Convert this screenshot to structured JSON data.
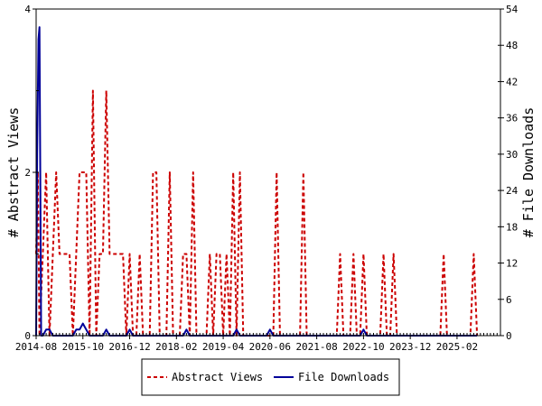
{
  "chart_data": {
    "type": "line",
    "y_left_label": "# Abstract Views",
    "y_right_label": "# File Downloads",
    "y_left_ticks": [
      "0",
      "2",
      "4"
    ],
    "y_right_ticks": [
      "0",
      "6",
      "12",
      "18",
      "24",
      "30",
      "36",
      "42",
      "48",
      "54"
    ],
    "y_left_range": [
      0,
      4
    ],
    "y_right_range": [
      0,
      54
    ],
    "x_range": [
      0,
      139
    ],
    "x_ticks": [
      {
        "label": "2014-08",
        "x": 0
      },
      {
        "label": "2015-10",
        "x": 14
      },
      {
        "label": "2016-12",
        "x": 28
      },
      {
        "label": "2018-02",
        "x": 42
      },
      {
        "label": "2019-04",
        "x": 56
      },
      {
        "label": "2020-06",
        "x": 70
      },
      {
        "label": "2021-08",
        "x": 84
      },
      {
        "label": "2022-10",
        "x": 98
      },
      {
        "label": "2023-12",
        "x": 112
      },
      {
        "label": "2025-02",
        "x": 126
      }
    ],
    "series": [
      {
        "name": "Abstract Views",
        "color": "#cc0000",
        "axis": "left",
        "dash": true,
        "points": [
          [
            0,
            1
          ],
          [
            0.5,
            2
          ],
          [
            1,
            0
          ],
          [
            2,
            1
          ],
          [
            3,
            2
          ],
          [
            4,
            0
          ],
          [
            5,
            1
          ],
          [
            6,
            2
          ],
          [
            7,
            1
          ],
          [
            8,
            1
          ],
          [
            9,
            1
          ],
          [
            10,
            1
          ],
          [
            11,
            0
          ],
          [
            12,
            1
          ],
          [
            13,
            2
          ],
          [
            14,
            2
          ],
          [
            15,
            2
          ],
          [
            16,
            0
          ],
          [
            17,
            3
          ],
          [
            18,
            0
          ],
          [
            19,
            1
          ],
          [
            20,
            1
          ],
          [
            21,
            3
          ],
          [
            22,
            1
          ],
          [
            23,
            1
          ],
          [
            24,
            1
          ],
          [
            25,
            1
          ],
          [
            26,
            1
          ],
          [
            27,
            0
          ],
          [
            28,
            1
          ],
          [
            29,
            0
          ],
          [
            30,
            0
          ],
          [
            31,
            1
          ],
          [
            32,
            0
          ],
          [
            33,
            0
          ],
          [
            34,
            0
          ],
          [
            35,
            2
          ],
          [
            36,
            2
          ],
          [
            37,
            0
          ],
          [
            38,
            0
          ],
          [
            39,
            0
          ],
          [
            40,
            2
          ],
          [
            41,
            0
          ],
          [
            42,
            0
          ],
          [
            43,
            0
          ],
          [
            44,
            1
          ],
          [
            45,
            1
          ],
          [
            46,
            0
          ],
          [
            47,
            2
          ],
          [
            48,
            0
          ],
          [
            49,
            0
          ],
          [
            50,
            0
          ],
          [
            51,
            0
          ],
          [
            52,
            1
          ],
          [
            53,
            0
          ],
          [
            54,
            1
          ],
          [
            55,
            1
          ],
          [
            56,
            0
          ],
          [
            57,
            1
          ],
          [
            58,
            0
          ],
          [
            59,
            2
          ],
          [
            60,
            0
          ],
          [
            61,
            2
          ],
          [
            62,
            0
          ],
          [
            63,
            0
          ],
          [
            64,
            0
          ],
          [
            65,
            0
          ],
          [
            66,
            0
          ],
          [
            67,
            0
          ],
          [
            68,
            0
          ],
          [
            69,
            0
          ],
          [
            70,
            0
          ],
          [
            71,
            0
          ],
          [
            72,
            2
          ],
          [
            73,
            0
          ],
          [
            74,
            0
          ],
          [
            75,
            0
          ],
          [
            76,
            0
          ],
          [
            77,
            0
          ],
          [
            78,
            0
          ],
          [
            79,
            0
          ],
          [
            80,
            2
          ],
          [
            81,
            0
          ],
          [
            82,
            0
          ],
          [
            83,
            0
          ],
          [
            84,
            0
          ],
          [
            85,
            0
          ],
          [
            86,
            0
          ],
          [
            87,
            0
          ],
          [
            88,
            0
          ],
          [
            89,
            0
          ],
          [
            90,
            0
          ],
          [
            91,
            1
          ],
          [
            92,
            0
          ],
          [
            93,
            0
          ],
          [
            94,
            0
          ],
          [
            95,
            1
          ],
          [
            96,
            0
          ],
          [
            97,
            0
          ],
          [
            98,
            1
          ],
          [
            99,
            0
          ],
          [
            100,
            0
          ],
          [
            101,
            0
          ],
          [
            102,
            0
          ],
          [
            103,
            0
          ],
          [
            104,
            1
          ],
          [
            105,
            0
          ],
          [
            106,
            0
          ],
          [
            107,
            1
          ],
          [
            108,
            0
          ],
          [
            109,
            0
          ],
          [
            110,
            0
          ],
          [
            111,
            0
          ],
          [
            112,
            0
          ],
          [
            113,
            0
          ],
          [
            114,
            0
          ],
          [
            115,
            0
          ],
          [
            116,
            0
          ],
          [
            117,
            0
          ],
          [
            118,
            0
          ],
          [
            119,
            0
          ],
          [
            120,
            0
          ],
          [
            121,
            0
          ],
          [
            122,
            1
          ],
          [
            123,
            0
          ],
          [
            124,
            0
          ],
          [
            125,
            0
          ],
          [
            126,
            0
          ],
          [
            127,
            0
          ],
          [
            128,
            0
          ],
          [
            129,
            0
          ],
          [
            130,
            0
          ],
          [
            131,
            1
          ],
          [
            132,
            0
          ]
        ]
      },
      {
        "name": "File Downloads",
        "color": "#000099",
        "axis": "right",
        "dash": false,
        "points": [
          [
            0,
            0
          ],
          [
            0.3,
            30
          ],
          [
            0.7,
            49
          ],
          [
            1,
            51
          ],
          [
            1.5,
            0
          ],
          [
            2,
            0
          ],
          [
            3,
            1
          ],
          [
            4,
            1
          ],
          [
            5,
            0
          ],
          [
            6,
            0
          ],
          [
            7,
            0
          ],
          [
            8,
            0
          ],
          [
            9,
            0
          ],
          [
            10,
            0
          ],
          [
            11,
            0
          ],
          [
            12,
            1
          ],
          [
            13,
            1
          ],
          [
            14,
            2
          ],
          [
            15,
            1
          ],
          [
            16,
            0
          ],
          [
            17,
            0
          ],
          [
            18,
            0
          ],
          [
            19,
            0
          ],
          [
            20,
            0
          ],
          [
            21,
            1
          ],
          [
            22,
            0
          ],
          [
            23,
            0
          ],
          [
            24,
            0
          ],
          [
            25,
            0
          ],
          [
            26,
            0
          ],
          [
            27,
            0
          ],
          [
            28,
            1
          ],
          [
            29,
            0
          ],
          [
            30,
            0
          ],
          [
            31,
            0
          ],
          [
            32,
            0
          ],
          [
            33,
            0
          ],
          [
            34,
            0
          ],
          [
            35,
            0
          ],
          [
            36,
            0
          ],
          [
            37,
            0
          ],
          [
            38,
            0
          ],
          [
            39,
            0
          ],
          [
            40,
            0
          ],
          [
            41,
            0
          ],
          [
            42,
            0
          ],
          [
            43,
            0
          ],
          [
            44,
            0
          ],
          [
            45,
            1
          ],
          [
            46,
            0
          ],
          [
            47,
            0
          ],
          [
            48,
            0
          ],
          [
            49,
            0
          ],
          [
            50,
            0
          ],
          [
            51,
            0
          ],
          [
            52,
            0
          ],
          [
            53,
            0
          ],
          [
            54,
            0
          ],
          [
            55,
            0
          ],
          [
            56,
            0
          ],
          [
            57,
            0
          ],
          [
            58,
            0
          ],
          [
            59,
            0
          ],
          [
            60,
            1
          ],
          [
            61,
            0
          ],
          [
            62,
            0
          ],
          [
            63,
            0
          ],
          [
            64,
            0
          ],
          [
            65,
            0
          ],
          [
            66,
            0
          ],
          [
            67,
            0
          ],
          [
            68,
            0
          ],
          [
            69,
            0
          ],
          [
            70,
            1
          ],
          [
            71,
            0
          ],
          [
            72,
            0
          ],
          [
            73,
            0
          ],
          [
            74,
            0
          ],
          [
            75,
            0
          ],
          [
            76,
            0
          ],
          [
            77,
            0
          ],
          [
            78,
            0
          ],
          [
            79,
            0
          ],
          [
            80,
            0
          ],
          [
            81,
            0
          ],
          [
            82,
            0
          ],
          [
            83,
            0
          ],
          [
            84,
            0
          ],
          [
            85,
            0
          ],
          [
            86,
            0
          ],
          [
            87,
            0
          ],
          [
            88,
            0
          ],
          [
            89,
            0
          ],
          [
            90,
            0
          ],
          [
            91,
            0
          ],
          [
            92,
            0
          ],
          [
            93,
            0
          ],
          [
            94,
            0
          ],
          [
            95,
            0
          ],
          [
            96,
            0
          ],
          [
            97,
            0
          ],
          [
            98,
            1
          ],
          [
            99,
            0
          ],
          [
            100,
            0
          ],
          [
            101,
            0
          ],
          [
            102,
            0
          ],
          [
            103,
            0
          ],
          [
            104,
            0
          ],
          [
            105,
            0
          ],
          [
            106,
            0
          ],
          [
            107,
            0
          ],
          [
            108,
            0
          ],
          [
            109,
            0
          ],
          [
            110,
            0
          ],
          [
            111,
            0
          ],
          [
            112,
            0
          ],
          [
            113,
            0
          ],
          [
            114,
            0
          ],
          [
            115,
            0
          ],
          [
            116,
            0
          ],
          [
            117,
            0
          ],
          [
            118,
            0
          ],
          [
            119,
            0
          ],
          [
            120,
            0
          ],
          [
            121,
            0
          ],
          [
            122,
            0
          ],
          [
            123,
            0
          ],
          [
            124,
            0
          ],
          [
            125,
            0
          ],
          [
            126,
            0
          ],
          [
            127,
            0
          ],
          [
            128,
            0
          ],
          [
            129,
            0
          ],
          [
            130,
            0
          ],
          [
            131,
            0
          ],
          [
            132,
            0
          ]
        ]
      }
    ],
    "legend": {
      "position": "bottom-center",
      "bordered": true
    },
    "grid": false
  }
}
